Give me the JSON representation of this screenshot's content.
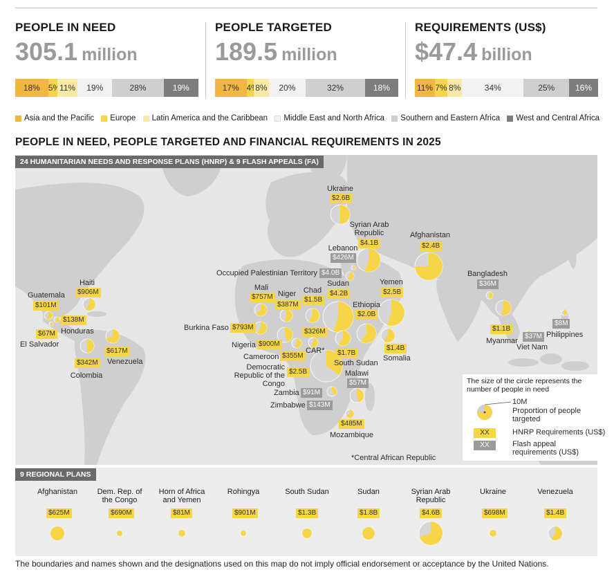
{
  "kpis": [
    {
      "title": "PEOPLE IN NEED",
      "prefix": "",
      "number": "305.1",
      "unit": "million",
      "shares": [
        18,
        5,
        11,
        19,
        28,
        19
      ],
      "labels": [
        "18%",
        "5%",
        "11%",
        "19%",
        "28%",
        "19%"
      ]
    },
    {
      "title": "PEOPLE TARGETED",
      "prefix": "",
      "number": "189.5",
      "unit": "million",
      "shares": [
        17,
        4,
        8,
        20,
        32,
        18
      ],
      "labels": [
        "17%",
        "4%",
        "8%",
        "20%",
        "32%",
        "18%"
      ]
    },
    {
      "title": "REQUIREMENTS (US$)",
      "prefix": "$",
      "number": "47.4",
      "unit": "billion",
      "shares": [
        11,
        7,
        8,
        34,
        25,
        16
      ],
      "labels": [
        "11%",
        "7%",
        "8%",
        "34%",
        "25%",
        "16%"
      ]
    }
  ],
  "regions": [
    {
      "name": "Asia and the Pacific",
      "color": "#f2b740"
    },
    {
      "name": "Europe",
      "color": "#f7d548"
    },
    {
      "name": "Latin America and the Caribbean",
      "color": "#faeaa8"
    },
    {
      "name": "Middle East and North Africa",
      "color": "#f2f2f2"
    },
    {
      "name": "Southern and Eastern Africa",
      "color": "#cfcfcf"
    },
    {
      "name": "West and Central Africa",
      "color": "#7d7d7d"
    }
  ],
  "section_title": "PEOPLE IN NEED, PEOPLE TARGETED AND FINANCIAL REQUIREMENTS IN 2025",
  "map_tag": "24 HUMANITARIAN NEEDS AND RESPONSE PLANS (HNRP) & 9 FLASH APPEALS (FA)",
  "regional_tag": "9 REGIONAL PLANS",
  "map_legend": {
    "heading": "The size of the circle represents the number of people in need",
    "circle_label": "10M",
    "proportion_label": "Proportion of people targeted",
    "hnrp_tag": "XX",
    "hnrp_label": "HNRP Requirements (US$)",
    "fa_tag": "XX",
    "fa_label": "Flash appeal requirements (US$)"
  },
  "car_note": "*Central African Republic",
  "map_labels": {
    "ukraine": "Ukraine",
    "syria": "Syrian Arab Republic",
    "afghanistan": "Afghanistan",
    "lebanon": "Lebanon",
    "opt": "Occupied Palestinian Territory",
    "bangladesh": "Bangladesh",
    "haiti": "Haiti",
    "guatemala": "Guatemala",
    "honduras": "Honduras",
    "elsalvador": "El Salvador",
    "colombia": "Colombia",
    "venezuela": "Venezuela",
    "mali": "Mali",
    "niger": "Niger",
    "chad": "Chad",
    "sudan": "Sudan",
    "yemen": "Yemen",
    "ethiopia": "Ethiopia",
    "burkina": "Burkina Faso",
    "nigeria": "Nigeria",
    "cameroon": "Cameroon",
    "car": "CAR*",
    "southsudan": "South Sudan",
    "somalia": "Somalia",
    "drc": "Democratic Republic of the Congo",
    "malawi": "Malawi",
    "zambia": "Zambia",
    "zimbabwe": "Zimbabwe",
    "mozambique": "Mozambique",
    "myanmar": "Myanmar",
    "vietnam": "Viet Nam",
    "philippines": "Philippines"
  },
  "map_values": {
    "ukraine": "$2.6B",
    "syria": "$4.1B",
    "afghanistan": "$2.4B",
    "lebanon": "$426M",
    "opt": "$4.0B",
    "bangladesh": "$36M",
    "haiti": "$906M",
    "guatemala": "$101M",
    "honduras": "$138M",
    "elsalvador": "$67M",
    "colombia": "$342M",
    "venezuela": "$617M",
    "mali": "$757M",
    "niger": "$387M",
    "chad": "$1.5B",
    "sudan": "$4.2B",
    "yemen": "$2.5B",
    "ethiopia": "$2.0B",
    "burkina": "$793M",
    "nigeria": "$900M",
    "cameroon": "$355M",
    "car": "$326M",
    "southsudan": "$1.7B",
    "somalia": "$1.4B",
    "drc": "$2.5B",
    "malawi": "$57M",
    "zambia": "$91M",
    "zimbabwe": "$143M",
    "mozambique": "$485M",
    "myanmar": "$1.1B",
    "vietnam": "$37M",
    "philippines": "$8M"
  },
  "regional_plans": [
    {
      "name": "Afghanistan",
      "value": "$625M",
      "targeted_share": 1.0
    },
    {
      "name": "Dem. Rep. of the Congo",
      "value": "$690M",
      "targeted_share": 1.0
    },
    {
      "name": "Horn of Africa and Yemen",
      "value": "$81M",
      "targeted_share": 1.0
    },
    {
      "name": "Rohingya",
      "value": "$901M",
      "targeted_share": 1.0
    },
    {
      "name": "South Sudan",
      "value": "$1.3B",
      "targeted_share": 1.0
    },
    {
      "name": "Sudan",
      "value": "$1.8B",
      "targeted_share": 1.0
    },
    {
      "name": "Syrian Arab Republic",
      "value": "$4.6B",
      "targeted_share": 0.7
    },
    {
      "name": "Ukraine",
      "value": "$698M",
      "targeted_share": 1.0
    },
    {
      "name": "Venezuela",
      "value": "$1.4B",
      "targeted_share": 0.6
    }
  ],
  "footnote": "The boundaries and names shown and the designations used on this map do not imply official endorsement or acceptance by the United Nations."
}
